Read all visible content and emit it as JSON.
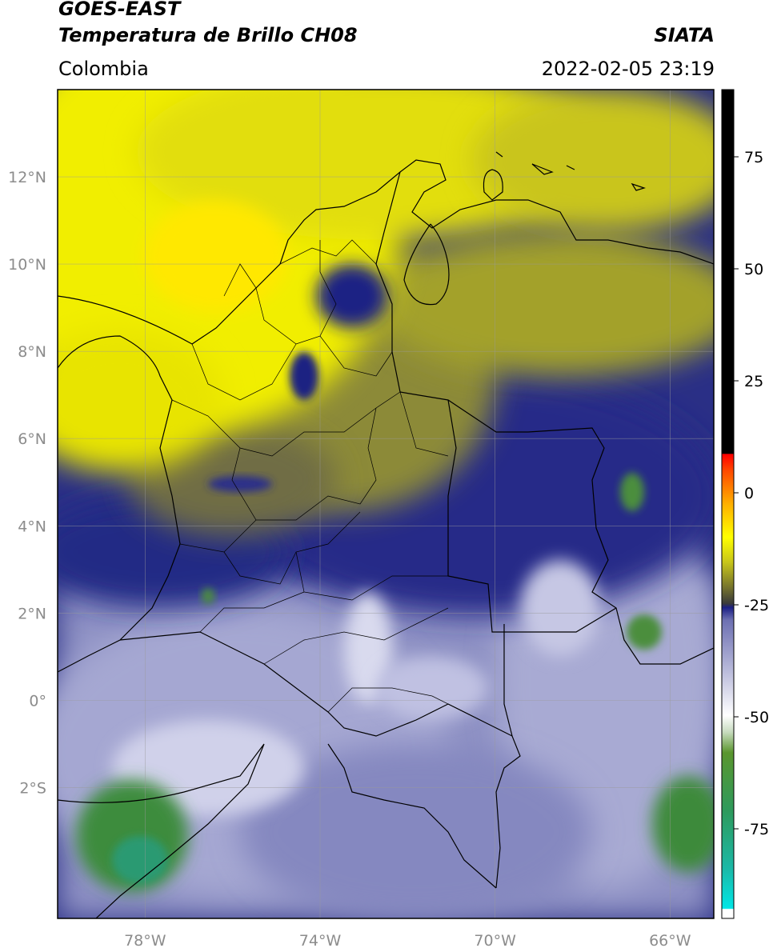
{
  "header": {
    "title_line1": "GOES-EAST",
    "title_line2": "Temperatura de Brillo CH08",
    "subtitle": "Colombia",
    "brand": "SIATA",
    "timestamp": "2022-02-05 23:19"
  },
  "map": {
    "lon_range": [
      -80,
      -65
    ],
    "lat_range": [
      -5,
      14
    ],
    "lat_ticks": [
      {
        "value": 12,
        "label": "12°N"
      },
      {
        "value": 10,
        "label": "10°N"
      },
      {
        "value": 8,
        "label": "8°N"
      },
      {
        "value": 6,
        "label": "6°N"
      },
      {
        "value": 4,
        "label": "4°N"
      },
      {
        "value": 2,
        "label": "2°N"
      },
      {
        "value": 0,
        "label": "0°"
      },
      {
        "value": -2,
        "label": "2°S"
      }
    ],
    "lon_ticks": [
      {
        "value": -78,
        "label": "78°W"
      },
      {
        "value": -74,
        "label": "74°W"
      },
      {
        "value": -70,
        "label": "70°W"
      },
      {
        "value": -66,
        "label": "66°W"
      }
    ],
    "grid": true
  },
  "colorbar": {
    "range": [
      -95,
      90
    ],
    "ticks": [
      {
        "value": 75,
        "label": "75"
      },
      {
        "value": 50,
        "label": "50"
      },
      {
        "value": 25,
        "label": "25"
      },
      {
        "value": 0,
        "label": "0"
      },
      {
        "value": -25,
        "label": "-25"
      },
      {
        "value": -50,
        "label": "-50"
      },
      {
        "value": -75,
        "label": "-75"
      }
    ],
    "colors": [
      "#ffffff",
      "#00e0e0",
      "#2ea06c",
      "#4a8a2a",
      "#ffffff",
      "#9da0cc",
      "#1f2383",
      "#c8c820",
      "#ffff00",
      "#ff7a00",
      "#ff0000",
      "#000000"
    ]
  },
  "colors": {
    "warm_yellow": "#f2f000",
    "olive": "#a8a428",
    "deep_blue": "#22277e",
    "pale_violet": "#a4a6cf",
    "cold_green": "#3d8a3a"
  }
}
